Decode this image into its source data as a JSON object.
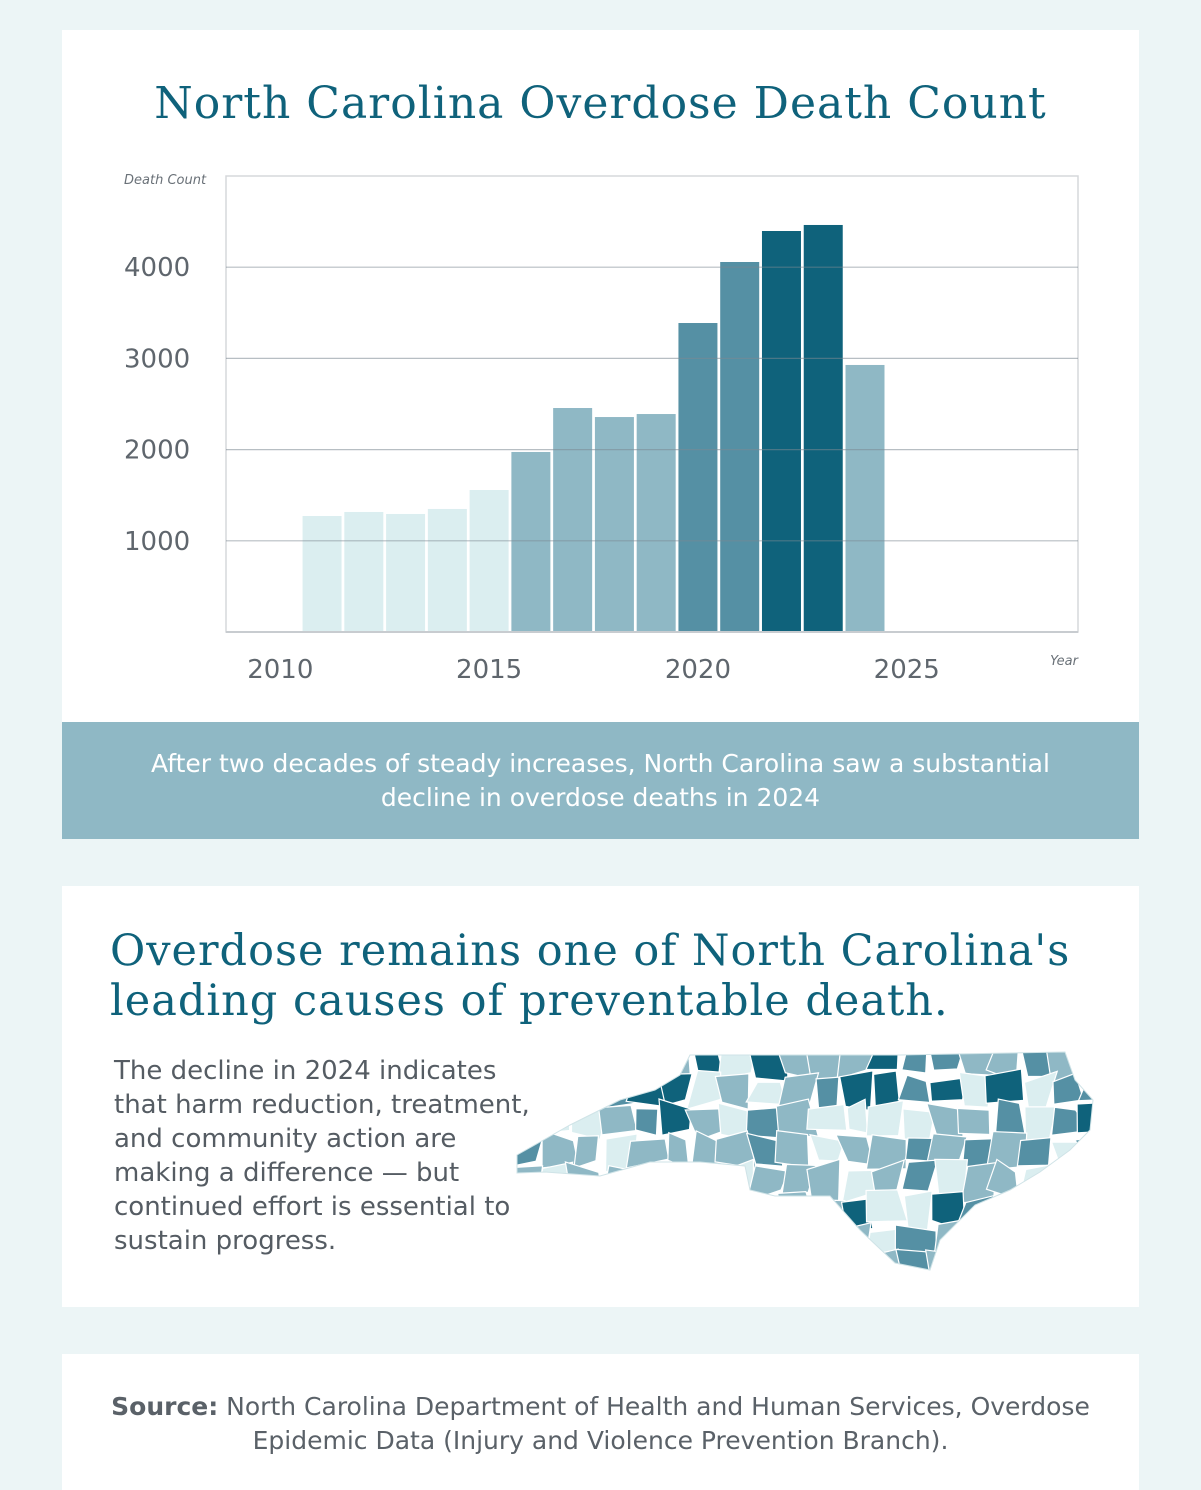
{
  "chart_data": {
    "type": "bar",
    "title": "North Carolina Overdose Death Count",
    "xlabel": "Year",
    "ylabel": "Death Count",
    "x": [
      2011,
      2012,
      2013,
      2014,
      2015,
      2016,
      2017,
      2018,
      2019,
      2020,
      2021,
      2022,
      2023,
      2024
    ],
    "values": [
      1272,
      1316,
      1294,
      1349,
      1557,
      1974,
      2456,
      2357,
      2390,
      3388,
      4057,
      4397,
      4463,
      2928
    ],
    "xlim": [
      2008.7,
      2029.1
    ],
    "ylim": [
      0,
      5000
    ],
    "x_ticks": [
      "2010",
      "2015",
      "2020",
      "2025"
    ],
    "y_ticks": [
      "1000",
      "2000",
      "3000",
      "4000"
    ],
    "grid": "horizontal",
    "colors": {
      "light": "#dbeef0",
      "medium": "#8fb8c5",
      "dark": "#5590a4",
      "darkest": "#0f627b"
    },
    "bar_color_levels": [
      "light",
      "light",
      "light",
      "light",
      "light",
      "medium",
      "medium",
      "medium",
      "medium",
      "dark",
      "dark",
      "darkest",
      "darkest",
      "medium"
    ]
  },
  "banner": {
    "text": "After two decades of steady increases, North Carolina saw a substantial decline in overdose deaths in 2024"
  },
  "section2": {
    "heading": "Overdose remains one of North Carolina's leading causes of preventable death.",
    "paragraph": "The decline in 2024 indicates that harm reduction, treatment, and community action are making a difference — but continued effort is essential to sustain progress."
  },
  "source": {
    "label": "Source:",
    "text": " North Carolina Department of Health and Human Services, Overdose Epidemic Data (Injury and Violence Prevention Branch)."
  }
}
